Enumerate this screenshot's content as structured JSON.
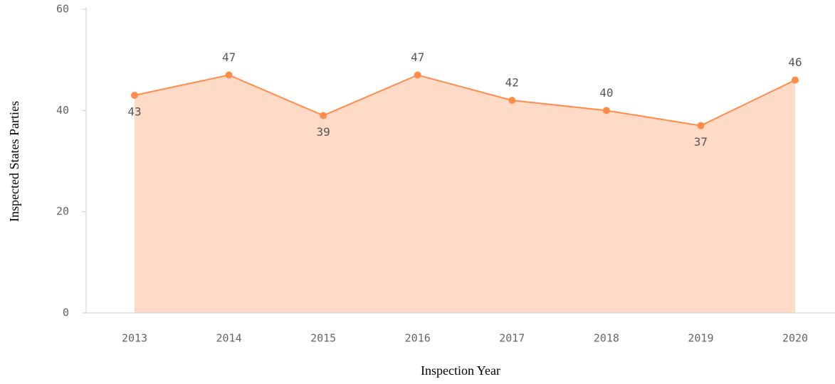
{
  "chart_data": {
    "type": "area",
    "x_label": "Inspection Year",
    "y_label": "Inspected States Parties",
    "categories": [
      "2013",
      "2014",
      "2015",
      "2016",
      "2017",
      "2018",
      "2019",
      "2020"
    ],
    "series": [
      {
        "name": "Inspected States Parties",
        "color": "#ff8c4a",
        "fill": "#ffdac6",
        "values": [
          43,
          47,
          39,
          47,
          42,
          40,
          37,
          46
        ]
      }
    ],
    "ylim": [
      0,
      60
    ],
    "yticks": [
      0,
      20,
      40,
      60
    ]
  }
}
